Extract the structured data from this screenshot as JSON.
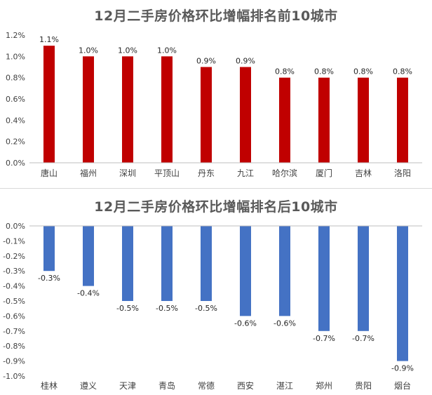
{
  "chart_data": [
    {
      "type": "bar",
      "title": "12月二手房价格环比增幅排名前10城市",
      "categories": [
        "唐山",
        "福州",
        "深圳",
        "平顶山",
        "丹东",
        "九江",
        "哈尔滨",
        "厦门",
        "吉林",
        "洛阳"
      ],
      "values": [
        1.1,
        1.0,
        1.0,
        1.0,
        0.9,
        0.9,
        0.8,
        0.8,
        0.8,
        0.8
      ],
      "data_labels": [
        "1.1%",
        "1.0%",
        "1.0%",
        "1.0%",
        "0.9%",
        "0.9%",
        "0.8%",
        "0.8%",
        "0.8%",
        "0.8%"
      ],
      "yticks": [
        "0.0%",
        "0.2%",
        "0.4%",
        "0.6%",
        "0.8%",
        "1.0%",
        "1.2%"
      ],
      "ylim": [
        0,
        1.2
      ],
      "unit": "%",
      "color": "#c00000",
      "grid": false,
      "legend": false
    },
    {
      "type": "bar",
      "title": "12月二手房价格环比增幅排名后10城市",
      "categories": [
        "桂林",
        "遵义",
        "天津",
        "青岛",
        "常德",
        "西安",
        "湛江",
        "郑州",
        "贵阳",
        "烟台"
      ],
      "values": [
        -0.3,
        -0.4,
        -0.5,
        -0.5,
        -0.5,
        -0.6,
        -0.6,
        -0.7,
        -0.7,
        -0.9
      ],
      "data_labels": [
        "-0.3%",
        "-0.4%",
        "-0.5%",
        "-0.5%",
        "-0.5%",
        "-0.6%",
        "-0.6%",
        "-0.7%",
        "-0.7%",
        "-0.9%"
      ],
      "yticks": [
        "0.0%",
        "-0.1%",
        "-0.2%",
        "-0.3%",
        "-0.4%",
        "-0.5%",
        "-0.6%",
        "-0.7%",
        "-0.8%",
        "-0.9%",
        "-1.0%"
      ],
      "ylim": [
        -1.0,
        0
      ],
      "unit": "%",
      "color": "#4472c4",
      "grid": false,
      "legend": false
    }
  ]
}
